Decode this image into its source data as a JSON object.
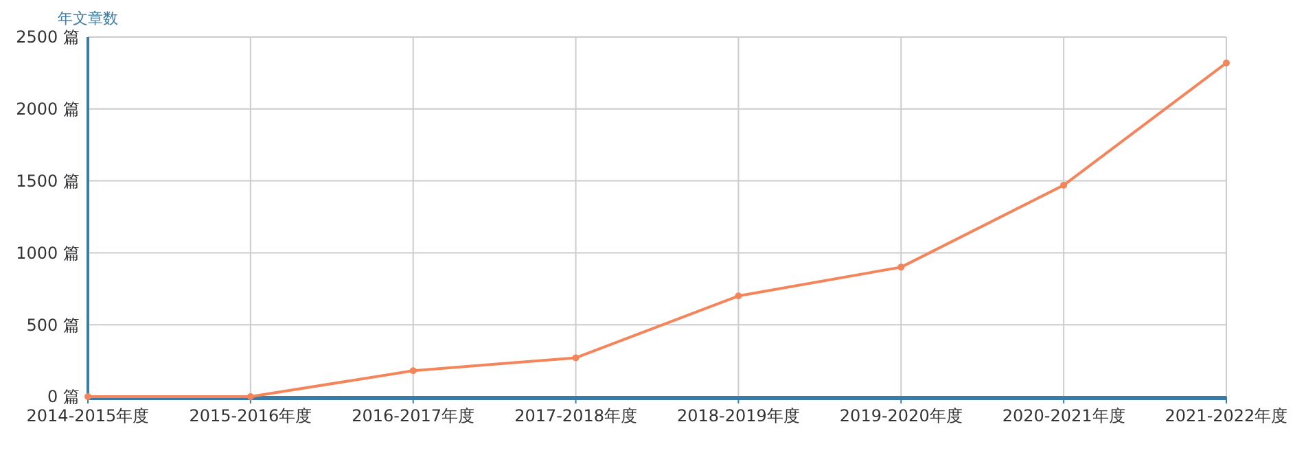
{
  "chart_data": {
    "type": "line",
    "ylabel": "年文章数",
    "categories": [
      "2014-2015年度",
      "2015-2016年度",
      "2016-2017年度",
      "2017-2018年度",
      "2018-2019年度",
      "2019-2020年度",
      "2020-2021年度",
      "2021-2022年度"
    ],
    "series": [
      {
        "color": "#f4845a",
        "values": [
          0,
          0,
          180,
          270,
          700,
          900,
          1470,
          2320
        ]
      }
    ],
    "ylim": [
      0,
      2500
    ],
    "yticks": [
      {
        "value": 0,
        "label": "0 篇"
      },
      {
        "value": 500,
        "label": "500 篇"
      },
      {
        "value": 1000,
        "label": "1000 篇"
      },
      {
        "value": 1500,
        "label": "1500 篇"
      },
      {
        "value": 2000,
        "label": "2000 篇"
      },
      {
        "value": 2500,
        "label": "2500 篇"
      }
    ],
    "grid": true,
    "marker": "circle",
    "line_style": "solid"
  }
}
